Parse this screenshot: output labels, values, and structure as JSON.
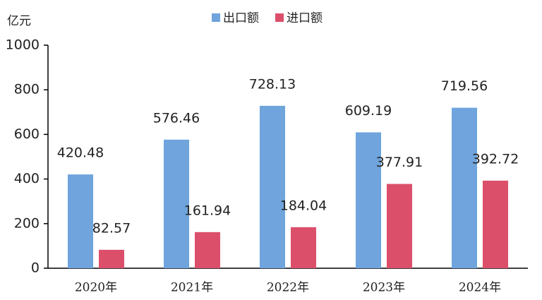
{
  "chart_data": {
    "type": "bar",
    "y_label": "亿元",
    "categories": [
      "2020年",
      "2021年",
      "2022年",
      "2023年",
      "2024年"
    ],
    "series": [
      {
        "name": "出口额",
        "color": "#6fa4dc",
        "values": [
          420.48,
          576.46,
          728.13,
          609.19,
          719.56
        ]
      },
      {
        "name": "进口额",
        "color": "#dc4f6b",
        "values": [
          82.57,
          161.94,
          184.04,
          377.91,
          392.72
        ]
      }
    ],
    "ylim": [
      0,
      1000
    ],
    "yticks": [
      0,
      200,
      400,
      600,
      800,
      1000
    ],
    "grid": false,
    "legend": "top"
  }
}
